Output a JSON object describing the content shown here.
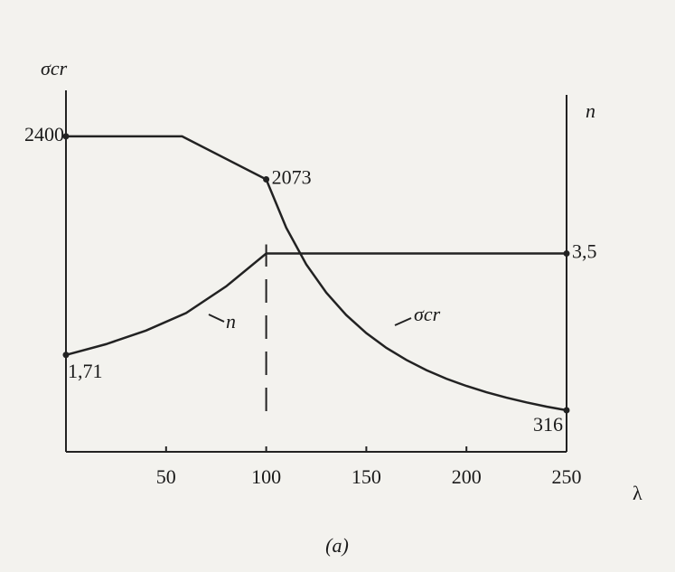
{
  "chart_data": {
    "type": "line",
    "caption": "(a)",
    "x_label": "λ",
    "y_label": "σcr",
    "y2_label": "n",
    "xlim": [
      0,
      250
    ],
    "xticks": [
      50,
      100,
      150,
      200,
      250
    ],
    "ylim": [
      0,
      2750
    ],
    "y2lim": [
      0,
      6.3
    ],
    "grid": false,
    "series": [
      {
        "name": "σcr",
        "color": "#222222",
        "x": [
          0,
          58,
          100,
          110,
          120,
          130,
          140,
          150,
          160,
          170,
          180,
          190,
          200,
          210,
          220,
          230,
          240,
          250
        ],
        "values": [
          2400,
          2400,
          2073,
          1705,
          1426,
          1211,
          1040,
          903,
          791,
          699,
          621,
          556,
          501,
          453,
          412,
          376,
          344,
          316
        ],
        "value_labels": [
          "2400",
          null,
          "2073",
          null,
          null,
          null,
          null,
          null,
          null,
          null,
          null,
          null,
          null,
          null,
          null,
          null,
          null,
          "316"
        ]
      },
      {
        "name": "n",
        "color": "#222222",
        "axis": "y2",
        "x": [
          0,
          20,
          40,
          60,
          80,
          100,
          250
        ],
        "values": [
          1.71,
          1.9,
          2.14,
          2.45,
          2.92,
          3.5,
          3.5
        ],
        "value_labels": [
          "1,71",
          null,
          null,
          null,
          null,
          null,
          "3,5"
        ]
      }
    ]
  }
}
